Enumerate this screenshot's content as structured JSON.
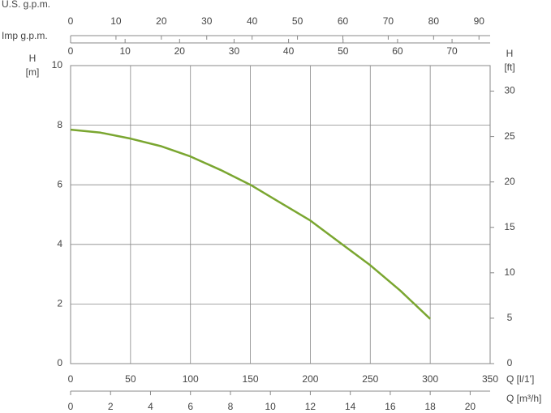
{
  "chart_data": {
    "type": "line",
    "x": [
      0,
      25,
      50,
      75,
      100,
      125,
      150,
      175,
      200,
      225,
      250,
      275,
      300
    ],
    "series": [
      {
        "name": "H",
        "color": "#7aa630",
        "values": [
          7.85,
          7.75,
          7.55,
          7.3,
          6.95,
          6.5,
          6.0,
          5.4,
          4.8,
          4.05,
          3.3,
          2.45,
          1.5
        ]
      }
    ],
    "xlabel": "Q [l/1']",
    "xlim": [
      0,
      350
    ],
    "xticks": [
      0,
      50,
      100,
      150,
      200,
      250,
      300,
      350
    ],
    "ylabel": [
      "H",
      "[m]"
    ],
    "ylim": [
      0,
      10
    ],
    "yticks": [
      0,
      2,
      4,
      6,
      8,
      10
    ],
    "y2label": [
      "H",
      "[ft]"
    ],
    "y2lim": [
      0,
      32.81
    ],
    "y2ticks": [
      0,
      5,
      10,
      15,
      20,
      25,
      30
    ],
    "grid": true,
    "extra_x_axes": [
      {
        "label": "U.S. g.p.m.",
        "position": "top",
        "lim": [
          0,
          92.46
        ],
        "ticks": [
          0,
          10,
          20,
          30,
          40,
          50,
          60,
          70,
          80,
          90
        ]
      },
      {
        "label": "Imp g.p.m.",
        "position": "top",
        "lim": [
          0,
          76.99
        ],
        "ticks": [
          0,
          10,
          20,
          30,
          40,
          50,
          60,
          70
        ]
      },
      {
        "label": "Q [m³/h]",
        "position": "bottom",
        "lim": [
          0,
          21
        ],
        "ticks": [
          0,
          2,
          4,
          6,
          8,
          10,
          12,
          14,
          16,
          18,
          20
        ]
      }
    ]
  }
}
